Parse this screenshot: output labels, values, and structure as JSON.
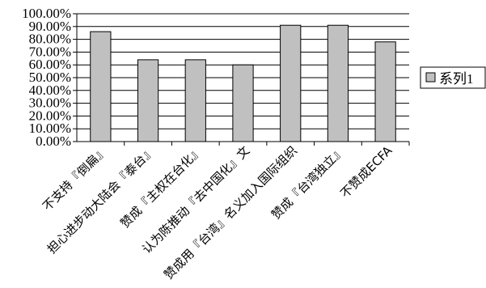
{
  "chart_data": {
    "type": "bar",
    "categories": [
      "不支持『倒扁』",
      "担心进步动大陆会『泰台』",
      "赞成『主权在台化』",
      "认为陈推动『去中国化』文",
      "赞成用『台湾』名义加入国际组织",
      "赞成『台湾独立』",
      "不赞成ECFA"
    ],
    "series": [
      {
        "name": "系列1",
        "values": [
          0.86,
          0.64,
          0.64,
          0.6,
          0.91,
          0.91,
          0.78
        ]
      }
    ],
    "ylim": [
      0,
      1
    ],
    "yticks": [
      "0.00%",
      "10.00%",
      "20.00%",
      "30.00%",
      "40.00%",
      "50.00%",
      "60.00%",
      "70.00%",
      "80.00%",
      "90.00%",
      "100.00%"
    ],
    "grid": true,
    "legend": "right",
    "colors": {
      "bar": "#c0c0c0",
      "bar_stroke": "#000000",
      "grid": "#000000"
    }
  }
}
